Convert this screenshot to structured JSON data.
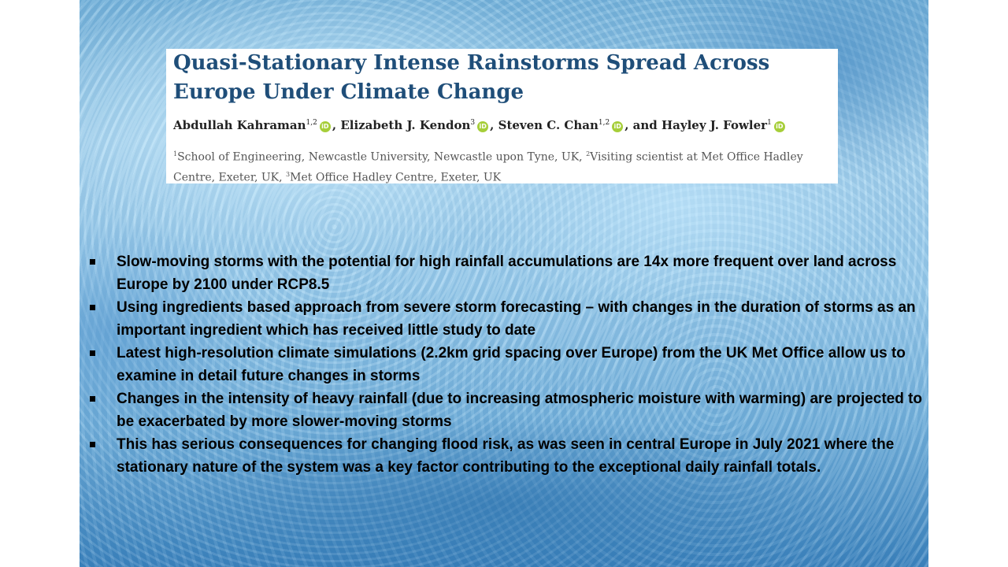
{
  "paper": {
    "title": "Quasi-Stationary Intense Rainstorms Spread Across Europe Under Climate Change",
    "authors": [
      {
        "name": "Abdullah Kahraman",
        "sup": "1,2",
        "sep": ", "
      },
      {
        "name": "Elizabeth J. Kendon",
        "sup": "3",
        "sep": ", "
      },
      {
        "name": "Steven C. Chan",
        "sup": "1,2",
        "sep": ", and "
      },
      {
        "name": "Hayley J. Fowler",
        "sup": "1",
        "sep": ""
      }
    ],
    "orcid_icon": "orcid-icon",
    "orcid_color": "#a6ce39",
    "affiliations": [
      {
        "sup": "1",
        "text": "School of Engineering, Newcastle University, Newcastle upon Tyne, UK, "
      },
      {
        "sup": "2",
        "text": "Visiting scientist at Met Office Hadley Centre, Exeter, UK, "
      },
      {
        "sup": "3",
        "text": "Met Office Hadley Centre, Exeter, UK"
      }
    ],
    "title_color": "#1f4e79"
  },
  "bullets": [
    "Slow-moving storms with the potential for high rainfall accumulations are 14x more frequent over land across Europe by 2100 under RCP8.5",
    "Using ingredients based approach from severe storm forecasting – with changes in the duration of storms as an important ingredient which has received little study to date",
    "Latest high-resolution climate simulations (2.2km grid spacing over Europe) from the UK Met Office allow us to examine in detail future changes in storms",
    "Changes in the intensity of heavy rainfall (due to increasing atmospheric moisture with warming) are projected to be exacerbated by more slower-moving storms",
    "This has serious consequences for changing flood risk, as was seen in central Europe in July 2021 where the stationary nature of the system was a key factor contributing to the exceptional daily rainfall totals."
  ]
}
